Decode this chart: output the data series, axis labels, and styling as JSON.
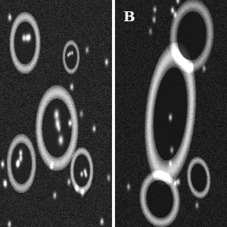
{
  "figsize": [
    3.2,
    3.2
  ],
  "dpi": 100,
  "divider_color": "#ffffff",
  "label_B": "B",
  "label_fontsize": 14,
  "label_color": "#ffffff",
  "background_color": "#000000",
  "seed": 42
}
